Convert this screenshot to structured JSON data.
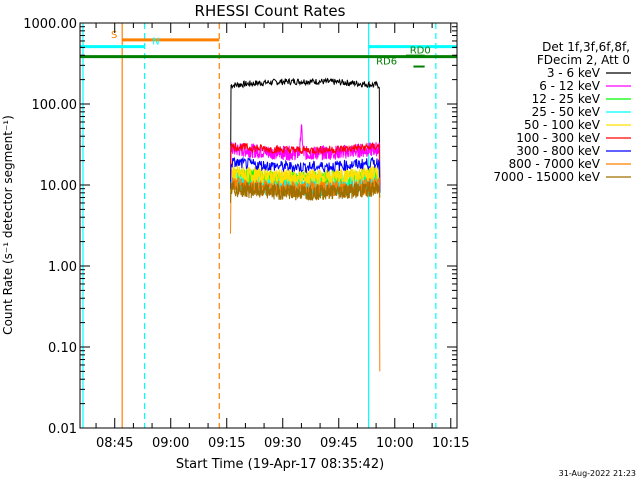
{
  "chart_data": {
    "type": "line",
    "title": "RHESSI Count Rates",
    "xlabel": "Start Time (19-Apr-17 08:35:42)",
    "ylabel": "Count Rate (s⁻¹ detector segment⁻¹)",
    "y_scale": "log",
    "ylim": [
      0.01,
      1000
    ],
    "xlim": [
      "08:35:42",
      "10:16:40"
    ],
    "x_ticks": [
      "08:45",
      "09:00",
      "09:15",
      "09:30",
      "09:45",
      "10:00",
      "10:15"
    ],
    "y_ticks": [
      "1000.00",
      "100.00",
      "10.00",
      "1.00",
      "0.10",
      "0.01"
    ],
    "grid": false,
    "legend_position": "right",
    "legend_header": [
      "Det 1f,3f,6f,8f,",
      "FDecim 2, Att 0"
    ],
    "series": [
      {
        "name": "3 - 6 keV",
        "color": "#000000",
        "start": "09:16",
        "end": "09:56",
        "start_value": 7,
        "level": 170,
        "end_value": 8,
        "noise": 0.04,
        "bump": 1.12
      },
      {
        "name": "6 - 12 keV",
        "color": "#ff00ff",
        "start": "09:16",
        "end": "09:56",
        "start_value": 10,
        "level": 28,
        "end_value": 8,
        "noise": 0.09,
        "bump": 0.88,
        "spike_time": "09:35",
        "spike_value": 55
      },
      {
        "name": "12 - 25 keV",
        "color": "#00ff00",
        "start": "09:16",
        "end": "09:56",
        "start_value": 8,
        "level": 13,
        "end_value": 7,
        "noise": 0.1,
        "bump": 0.9
      },
      {
        "name": "25 - 50 keV",
        "color": "#00ffff",
        "start": "09:16",
        "end": "09:56",
        "start_value": 7,
        "level": 11,
        "end_value": 7,
        "noise": 0.12,
        "bump": 0.85
      },
      {
        "name": "50 - 100 keV",
        "color": "#ffdf00",
        "start": "09:16",
        "end": "09:56",
        "start_value": 8,
        "level": 14,
        "end_value": 7,
        "noise": 0.1,
        "bump": 0.88
      },
      {
        "name": "100 - 300 keV",
        "color": "#ff0000",
        "start": "09:16",
        "end": "09:56",
        "start_value": 12,
        "level": 30,
        "end_value": 10,
        "noise": 0.05,
        "bump": 0.9
      },
      {
        "name": "300 - 800 keV",
        "color": "#0000ff",
        "start": "09:16",
        "end": "09:56",
        "start_value": 9,
        "level": 19,
        "end_value": 8,
        "noise": 0.07,
        "bump": 0.88
      },
      {
        "name": "800 - 7000 keV",
        "color": "#ff7f00",
        "start": "09:16",
        "end": "09:56",
        "start_value": 2.5,
        "level": 10,
        "end_value": 0.05,
        "noise": 0.1,
        "bump": 0.88
      },
      {
        "name": "7000 - 15000 keV",
        "color": "#9f6f00",
        "start": "09:16",
        "end": "09:56",
        "start_value": 6,
        "level": 9,
        "end_value": 7,
        "noise": 0.1,
        "bump": 0.9
      }
    ],
    "vertical_lines": [
      {
        "time": "08:36:30",
        "color": "#00ffff",
        "style": "solid"
      },
      {
        "time": "08:47",
        "color": "#ff7f00",
        "style": "solid"
      },
      {
        "time": "08:53",
        "color": "#00ffff",
        "style": "dashed"
      },
      {
        "time": "09:13",
        "color": "#ff7f00",
        "style": "dashed"
      },
      {
        "time": "09:53",
        "color": "#00ffff",
        "style": "solid"
      },
      {
        "time": "10:11",
        "color": "#00ffff",
        "style": "dashed"
      }
    ],
    "bands": [
      {
        "label": "S",
        "color": "#ff7f00",
        "start": "08:47",
        "end": "09:13",
        "value": 620,
        "thickness": 3,
        "label_time": "08:44"
      },
      {
        "label": "N",
        "color": "#00ffff",
        "start": "08:35:42",
        "end": "08:53",
        "value": 510,
        "thickness": 3,
        "label_time": "08:55"
      },
      {
        "label": "",
        "color": "#00ffff",
        "start": "09:53",
        "end": "10:16:40",
        "value": 510,
        "thickness": 3
      },
      {
        "label": "",
        "color": "#007f00",
        "start": "08:35:42",
        "end": "10:16:40",
        "value": 385,
        "thickness": 3
      },
      {
        "label": "RD0",
        "color": "#007f00",
        "start": "10:03",
        "end": "10:08",
        "value": 395,
        "thickness": 2,
        "label_time": "10:04"
      },
      {
        "label": "RD6",
        "color": "#007f00",
        "start": "10:05",
        "end": "10:08",
        "value": 290,
        "thickness": 2,
        "label_time": "09:55"
      }
    ],
    "footer_date": "31-Aug-2022 21:23"
  },
  "colors": {
    "background": "#ffffff",
    "axes": "#000000"
  }
}
